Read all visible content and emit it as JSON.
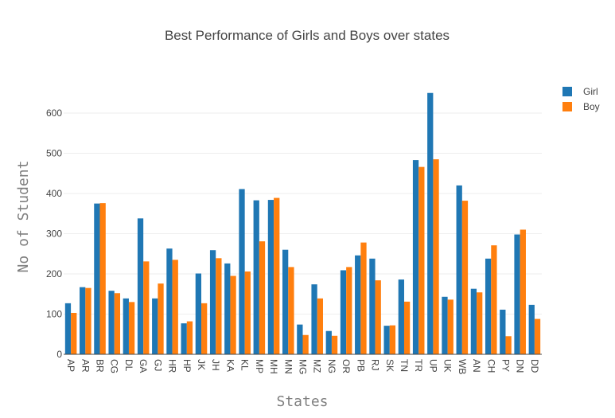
{
  "chart_data": {
    "type": "bar",
    "title": "Best Performance of Girls and Boys over states",
    "xlabel": "States",
    "ylabel": "No of Student",
    "categories": [
      "AP",
      "AR",
      "BR",
      "CG",
      "DL",
      "GA",
      "GJ",
      "HR",
      "HP",
      "JK",
      "JH",
      "KA",
      "KL",
      "MP",
      "MH",
      "MN",
      "MG",
      "MZ",
      "NG",
      "OR",
      "PB",
      "RJ",
      "SK",
      "TN",
      "TR",
      "UP",
      "UK",
      "WB",
      "AN",
      "CH",
      "PY",
      "DN",
      "DD"
    ],
    "series": [
      {
        "name": "Girl",
        "color": "#1f77b4",
        "values": [
          127,
          167,
          375,
          158,
          139,
          338,
          139,
          263,
          77,
          201,
          259,
          226,
          411,
          383,
          384,
          260,
          74,
          174,
          58,
          209,
          246,
          238,
          71,
          186,
          483,
          650,
          143,
          420,
          163,
          238,
          111,
          298,
          123
        ]
      },
      {
        "name": "Boy",
        "color": "#ff7f0e",
        "values": [
          103,
          165,
          376,
          152,
          130,
          231,
          176,
          235,
          82,
          127,
          239,
          195,
          206,
          281,
          389,
          217,
          48,
          139,
          46,
          217,
          278,
          184,
          72,
          131,
          466,
          485,
          136,
          382,
          154,
          271,
          45,
          310,
          88
        ]
      }
    ],
    "yticks": [
      0,
      100,
      200,
      300,
      400,
      500,
      600
    ],
    "ylim": [
      0,
      685
    ],
    "grid": true,
    "legend_position": "top-right"
  }
}
